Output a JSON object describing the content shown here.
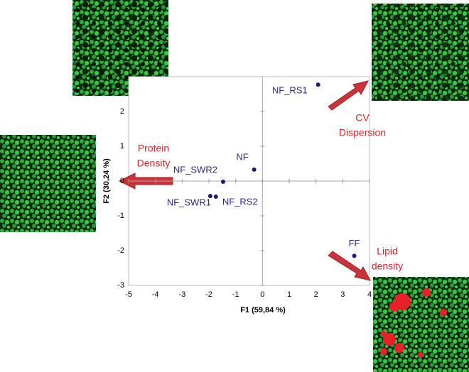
{
  "chart_data": {
    "type": "scatter",
    "xlabel": "F1 (59,84 %)",
    "ylabel": "F2 (30,24 %)",
    "labels": [
      "NF_RS1",
      "NF",
      "NF_SWR2",
      "NF_SWR1",
      "NF_RS2",
      "FF"
    ],
    "x": [
      2.08,
      -0.31,
      -1.47,
      -1.95,
      -1.74,
      3.43
    ],
    "y": [
      2.77,
      0.33,
      -0.02,
      -0.43,
      -0.45,
      -2.15
    ],
    "color": "#1c1c6b",
    "xlim": [
      -5,
      4
    ],
    "xticks": [
      -5,
      -4,
      -3,
      -2,
      -1,
      0,
      1,
      2,
      3,
      4
    ],
    "ylim": [
      -3,
      3
    ],
    "yticks": [
      -3,
      -2,
      -1,
      0,
      1,
      2
    ],
    "annotations": [
      [
        "Protein",
        "Density"
      ],
      [
        "CV",
        "Dispersion"
      ],
      [
        "Lipid",
        "density"
      ]
    ]
  }
}
